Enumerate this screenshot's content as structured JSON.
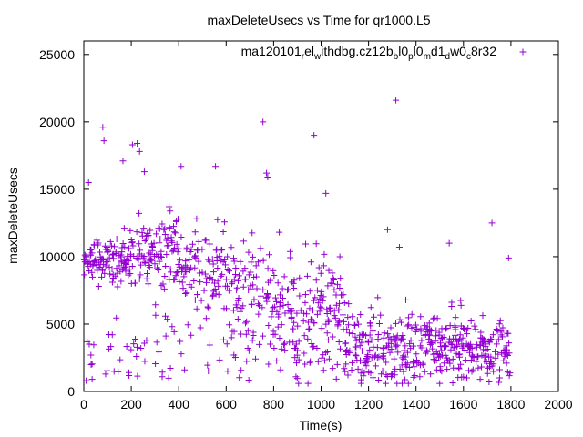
{
  "chart_data": {
    "type": "scatter",
    "title": "maxDeleteUsecs vs Time for qr1000.L5",
    "xlabel": "Time(s)",
    "ylabel": "maxDeleteUsecs",
    "xlim": [
      0,
      2000
    ],
    "ylim": [
      0,
      26000
    ],
    "xticks": [
      0,
      200,
      400,
      600,
      800,
      1000,
      1200,
      1400,
      1600,
      1800,
      2000
    ],
    "yticks": [
      0,
      5000,
      10000,
      15000,
      20000,
      25000
    ],
    "xtick_labels": [
      "0",
      "200",
      "400",
      "600",
      "800",
      "1000",
      "1200",
      "1400",
      "1600",
      "1800",
      "2000"
    ],
    "ytick_labels": [
      "0",
      "5000",
      "10000",
      "15000",
      "20000",
      "25000"
    ],
    "grid": false,
    "legend_position": "top-right",
    "series": [
      {
        "name": "ma120101_rel_withdbg.cz12b_bl0_pl0_md1_dw0_c8r32",
        "legend": {
          "base1": "ma120101",
          "sub1": "r",
          "part2": "el",
          "sub2": "w",
          "part3": "ithdbg.cz12b",
          "sub3": "b",
          "part4": "l0",
          "sub4": "p",
          "part5": "l0",
          "sub5": "m",
          "part6": "d1",
          "sub6": "d",
          "part7": "w0",
          "sub7": "c",
          "part8": "8r32"
        },
        "color": "#9400d3",
        "marker": "plus",
        "phases": [
          {
            "x": [
              0,
              50
            ],
            "mean": 9800,
            "spread": 1200,
            "density": 0.9
          },
          {
            "x": [
              50,
              200
            ],
            "mean": 9700,
            "spread": 1400,
            "density": 0.9
          },
          {
            "x": [
              200,
              400
            ],
            "mean": 10500,
            "spread": 2000,
            "density": 0.8
          },
          {
            "x": [
              400,
              600
            ],
            "mean": 9000,
            "spread": 2500,
            "density": 0.7
          },
          {
            "x": [
              600,
              800
            ],
            "mean": 7500,
            "spread": 3200,
            "density": 0.7
          },
          {
            "x": [
              800,
              1000
            ],
            "mean": 6000,
            "spread": 3500,
            "density": 0.7
          },
          {
            "x": [
              1000,
              1100
            ],
            "mean": 5500,
            "spread": 3500,
            "density": 0.7
          },
          {
            "x": [
              1100,
              1400
            ],
            "mean": 3500,
            "spread": 2200,
            "density": 0.8
          },
          {
            "x": [
              1400,
              1600
            ],
            "mean": 3500,
            "spread": 2000,
            "density": 0.8
          },
          {
            "x": [
              1600,
              1800
            ],
            "mean": 3000,
            "spread": 1700,
            "density": 0.8
          }
        ],
        "outliers": [
          {
            "x": 80,
            "y": 19600
          },
          {
            "x": 85,
            "y": 18600
          },
          {
            "x": 205,
            "y": 18300
          },
          {
            "x": 225,
            "y": 18400
          },
          {
            "x": 235,
            "y": 17800
          },
          {
            "x": 165,
            "y": 17100
          },
          {
            "x": 255,
            "y": 16300
          },
          {
            "x": 410,
            "y": 16700
          },
          {
            "x": 555,
            "y": 16700
          },
          {
            "x": 755,
            "y": 20000
          },
          {
            "x": 770,
            "y": 16200
          },
          {
            "x": 775,
            "y": 15900
          },
          {
            "x": 970,
            "y": 19000
          },
          {
            "x": 1020,
            "y": 14700
          },
          {
            "x": 1315,
            "y": 21600
          },
          {
            "x": 1280,
            "y": 12000
          },
          {
            "x": 1330,
            "y": 10700
          },
          {
            "x": 1720,
            "y": 12500
          },
          {
            "x": 1790,
            "y": 9900
          },
          {
            "x": 1540,
            "y": 11000
          },
          {
            "x": 20,
            "y": 15500
          },
          {
            "x": 30,
            "y": 2700
          },
          {
            "x": 10,
            "y": 800
          },
          {
            "x": 35,
            "y": 900
          },
          {
            "x": 120,
            "y": 4200
          },
          {
            "x": 190,
            "y": 1400
          }
        ]
      }
    ]
  }
}
